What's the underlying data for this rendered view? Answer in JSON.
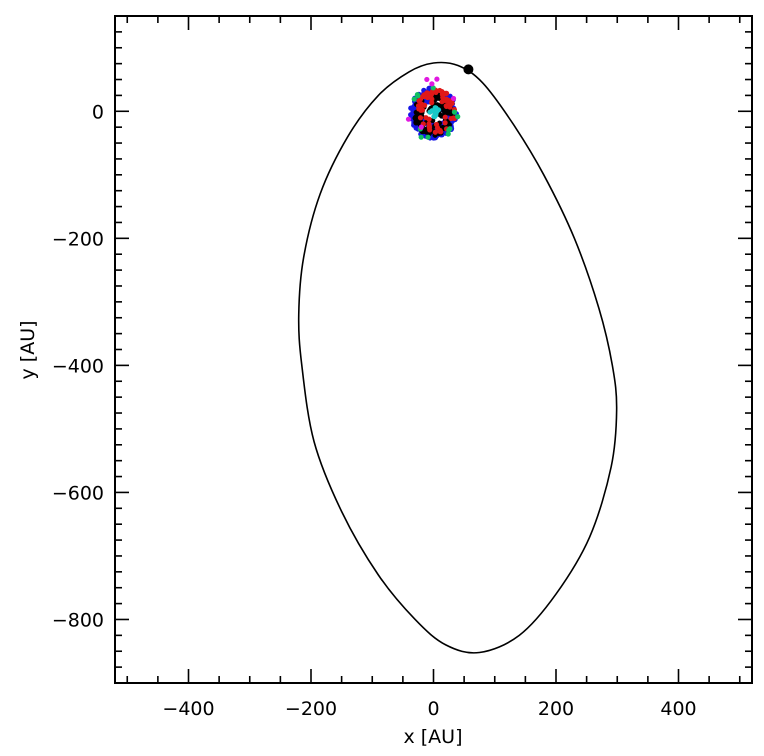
{
  "chart_data": {
    "type": "scatter",
    "title": "",
    "xlabel": "x [AU]",
    "ylabel": "y [AU]",
    "xlim": [
      -520,
      520
    ],
    "ylim": [
      -900,
      150
    ],
    "xticks": [
      -400,
      -200,
      0,
      200,
      400
    ],
    "xtick_labels": [
      "−400",
      "−200",
      "0",
      "200",
      "400"
    ],
    "yticks": [
      0,
      -200,
      -400,
      -600,
      -800
    ],
    "ytick_labels": [
      "0",
      "−200",
      "−400",
      "−600",
      "−800"
    ],
    "x_minor_step": 50,
    "y_minor_step": 25,
    "grid": false,
    "orbit": {
      "name": "companion orbit",
      "color": "#000000",
      "points": [
        [
          0,
          76
        ],
        [
          40,
          72
        ],
        [
          80,
          45
        ],
        [
          130,
          -20
        ],
        [
          180,
          -100
        ],
        [
          230,
          -200
        ],
        [
          270,
          -310
        ],
        [
          292,
          -400
        ],
        [
          299,
          -470
        ],
        [
          290,
          -560
        ],
        [
          255,
          -670
        ],
        [
          200,
          -760
        ],
        [
          140,
          -825
        ],
        [
          75,
          -852
        ],
        [
          20,
          -840
        ],
        [
          -30,
          -800
        ],
        [
          -90,
          -730
        ],
        [
          -150,
          -630
        ],
        [
          -195,
          -520
        ],
        [
          -215,
          -400
        ],
        [
          -220,
          -320
        ],
        [
          -212,
          -230
        ],
        [
          -185,
          -130
        ],
        [
          -140,
          -40
        ],
        [
          -90,
          25
        ],
        [
          -40,
          62
        ],
        [
          0,
          76
        ]
      ]
    },
    "companion": {
      "name": "companion",
      "x": 57,
      "y": 66,
      "color": "#000000"
    },
    "series": [
      {
        "name": "blue particles",
        "color": "#1515e6",
        "count": 230,
        "r_min": 14,
        "r_max": 38,
        "center": [
          0,
          -3
        ],
        "seed": 11
      },
      {
        "name": "black particles",
        "color": "#000000",
        "count": 110,
        "r_min": 2,
        "r_max": 32,
        "center": [
          0,
          -5
        ],
        "seed": 23
      },
      {
        "name": "red particles",
        "color": "#e01818",
        "count": 70,
        "r_min": 14,
        "r_max": 32,
        "center": [
          4,
          0
        ],
        "seed": 37
      },
      {
        "name": "green particles",
        "color": "#10c060",
        "count": 12,
        "r_min": 30,
        "r_max": 40,
        "center": [
          0,
          -5
        ],
        "seed": 41
      },
      {
        "name": "cyan particles",
        "color": "#18c8c8",
        "count": 14,
        "r_min": 0,
        "r_max": 10,
        "center": [
          2,
          -3
        ],
        "seed": 53
      },
      {
        "name": "magenta particles",
        "color": "#e018e0",
        "count": 6,
        "r_min": 30,
        "r_max": 44,
        "center": [
          -8,
          10
        ],
        "seed": 67
      }
    ]
  }
}
